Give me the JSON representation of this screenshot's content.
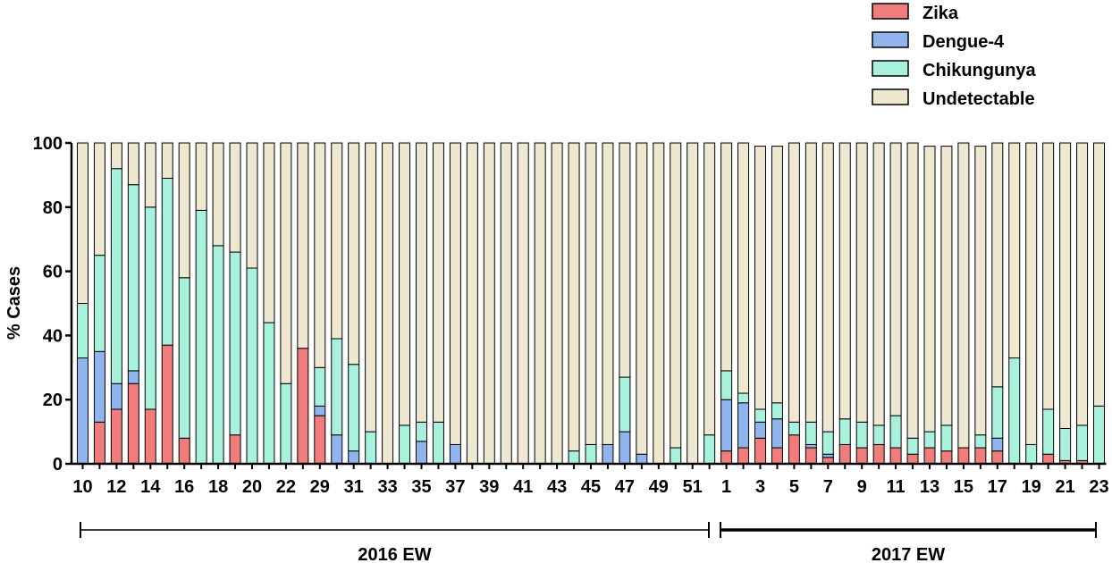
{
  "chart_data": {
    "type": "bar",
    "stacked": true,
    "ylabel": "% Cases",
    "ylim": [
      0,
      100
    ],
    "y_ticks": [
      0,
      20,
      40,
      60,
      80,
      100
    ],
    "grid": false,
    "legend_position": "top-right",
    "colors": {
      "Zika": "#f07c7c",
      "Dengue-4": "#8fb4ee",
      "Chikungunya": "#a8f1dc",
      "Undetectable": "#eee8d0"
    },
    "categories": [
      "10",
      "11",
      "12",
      "13",
      "14",
      "15",
      "16",
      "17",
      "18",
      "19",
      "20",
      "21",
      "22",
      "23",
      "29",
      "30",
      "31",
      "32",
      "33",
      "34",
      "35",
      "36",
      "37",
      "38",
      "39",
      "40",
      "41",
      "42",
      "43",
      "44",
      "45",
      "46",
      "47",
      "48",
      "49",
      "50",
      "51",
      "52",
      "1",
      "2",
      "3",
      "4",
      "5",
      "6",
      "7",
      "8",
      "9",
      "10",
      "11",
      "12",
      "13",
      "14",
      "15",
      "16",
      "17",
      "18",
      "19",
      "20",
      "21",
      "22",
      "23"
    ],
    "tick_labels": [
      "10",
      "",
      "12",
      "",
      "14",
      "",
      "16",
      "",
      "18",
      "",
      "20",
      "",
      "22",
      "",
      "29",
      "",
      "31",
      "",
      "33",
      "",
      "35",
      "",
      "37",
      "",
      "39",
      "",
      "41",
      "",
      "43",
      "",
      "45",
      "",
      "47",
      "",
      "49",
      "",
      "51",
      "",
      "1",
      "",
      "3",
      "",
      "5",
      "",
      "7",
      "",
      "9",
      "",
      "11",
      "",
      "13",
      "",
      "15",
      "",
      "17",
      "",
      "19",
      "",
      "21",
      "",
      "23"
    ],
    "series": [
      {
        "name": "Zika",
        "values": [
          0,
          13,
          17,
          25,
          17,
          37,
          8,
          0,
          0,
          9,
          0,
          0,
          0,
          36,
          15,
          0,
          0,
          0,
          0,
          0,
          0,
          0,
          0,
          0,
          0,
          0,
          0,
          0,
          0,
          0,
          0,
          0,
          0,
          0,
          0,
          0,
          0,
          0,
          4,
          5,
          8,
          5,
          9,
          5,
          2,
          6,
          5,
          6,
          5,
          3,
          5,
          4,
          5,
          5,
          4,
          0,
          0,
          3,
          1,
          1,
          0
        ]
      },
      {
        "name": "Dengue-4",
        "values": [
          33,
          22,
          8,
          4,
          0,
          0,
          0,
          0,
          0,
          0,
          0,
          0,
          0,
          0,
          3,
          9,
          4,
          0,
          0,
          0,
          7,
          0,
          6,
          0,
          0,
          0,
          0,
          0,
          0,
          0,
          0,
          6,
          10,
          3,
          0,
          0,
          0,
          0,
          16,
          14,
          5,
          9,
          0,
          1,
          1,
          0,
          0,
          0,
          0,
          0,
          0,
          0,
          0,
          0,
          4,
          0,
          0,
          0,
          0,
          0,
          0
        ]
      },
      {
        "name": "Chikungunya",
        "values": [
          17,
          30,
          67,
          58,
          63,
          52,
          50,
          79,
          68,
          57,
          61,
          44,
          25,
          0,
          12,
          30,
          27,
          10,
          0,
          12,
          6,
          13,
          0,
          0,
          0,
          0,
          0,
          0,
          0,
          4,
          6,
          0,
          17,
          0,
          0,
          5,
          0,
          9,
          9,
          3,
          4,
          5,
          4,
          7,
          7,
          8,
          8,
          6,
          10,
          5,
          5,
          8,
          0,
          4,
          16,
          33,
          6,
          14,
          10,
          11,
          18
        ]
      },
      {
        "name": "Undetectable",
        "values": [
          50,
          35,
          8,
          13,
          20,
          11,
          42,
          21,
          32,
          34,
          39,
          56,
          75,
          64,
          70,
          61,
          69,
          90,
          100,
          88,
          87,
          87,
          94,
          100,
          100,
          100,
          100,
          100,
          100,
          96,
          94,
          94,
          73,
          97,
          100,
          95,
          100,
          91,
          71,
          78,
          82,
          80,
          87,
          87,
          90,
          86,
          87,
          88,
          85,
          92,
          89,
          87,
          95,
          90,
          76,
          67,
          94,
          83,
          89,
          88,
          82
        ]
      }
    ],
    "period_labels": [
      "2016 EW",
      "2017 EW"
    ]
  }
}
